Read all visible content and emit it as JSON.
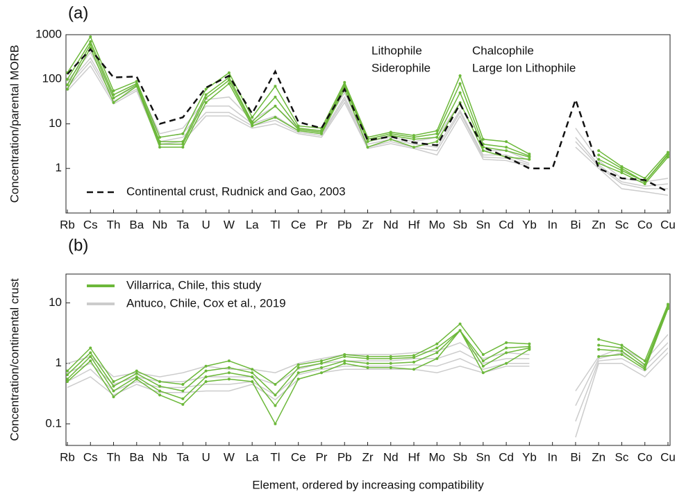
{
  "chart_data": [
    {
      "type": "line",
      "label": "(a)",
      "ylabel": "Concentration/parental MORB",
      "log": true,
      "categories": [
        "Rb",
        "Cs",
        "Th",
        "Ba",
        "Nb",
        "Ta",
        "U",
        "W",
        "La",
        "Tl",
        "Ce",
        "Pr",
        "Pb",
        "Zr",
        "Nd",
        "Hf",
        "Mo",
        "Sb",
        "Sn",
        "Cd",
        "Yb",
        "In",
        "Bi",
        "Zn",
        "Sc",
        "Co",
        "Cu"
      ],
      "category_group": [
        3,
        3,
        0,
        3,
        0,
        0,
        3,
        2,
        0,
        1,
        0,
        0,
        1,
        0,
        0,
        0,
        2,
        1,
        1,
        0,
        0,
        1,
        1,
        1,
        0,
        2,
        1
      ],
      "category_groups": [
        {
          "name": "Lithophile",
          "color": "#111111"
        },
        {
          "name": "Chalcophile",
          "color": "#e0312b"
        },
        {
          "name": "Siderophile",
          "color": "#e9a83c"
        },
        {
          "name": "Large Ion Lithophile",
          "color": "#3ab0d0"
        }
      ],
      "ylim": [
        0.1,
        1000
      ],
      "yticks": [
        1,
        10,
        100,
        1000
      ],
      "series": [
        {
          "color": "#cccccc",
          "lines": [
            [
              90,
              400,
              45,
              80,
              6,
              8,
              35,
              40,
              12,
              25,
              8,
              7,
              50,
              4,
              5,
              4,
              5,
              30,
              2.5,
              2.5,
              1.5,
              null,
              8,
              1.5,
              0.6,
              0.5,
              0.6
            ],
            [
              75,
              300,
              38,
              70,
              5,
              6,
              25,
              25,
              10,
              15,
              7,
              6,
              40,
              3.5,
              4.5,
              3.5,
              3,
              20,
              2,
              2,
              1.3,
              null,
              5,
              1.2,
              0.5,
              0.4,
              0.45
            ],
            [
              65,
              250,
              32,
              60,
              4,
              5,
              18,
              18,
              9,
              12,
              6.5,
              5.5,
              35,
              3,
              4,
              3,
              2.5,
              18,
              1.8,
              1.7,
              1.2,
              null,
              4,
              1.1,
              0.45,
              0.35,
              0.35
            ],
            [
              55,
              200,
              28,
              55,
              3.5,
              4,
              15,
              15,
              8,
              10,
              6,
              5,
              30,
              2.8,
              3.6,
              2.8,
              2,
              15,
              1.6,
              1.5,
              1.1,
              null,
              3,
              1,
              0.35,
              0.3,
              0.25
            ]
          ]
        },
        {
          "color": "#6cb83a",
          "markers": true,
          "lines": [
            [
              140,
              900,
              55,
              90,
              5,
              6,
              60,
              140,
              14,
              70,
              9,
              8,
              85,
              5,
              6.5,
              5.5,
              7,
              120,
              4.5,
              4,
              2.1,
              null,
              null,
              2.5,
              1.1,
              0.6,
              2.3
            ],
            [
              100,
              700,
              45,
              80,
              4,
              4,
              45,
              110,
              11,
              40,
              8,
              7,
              75,
              4.5,
              6,
              5,
              6,
              80,
              3.5,
              3,
              1.9,
              null,
              null,
              2,
              1,
              0.5,
              2.1
            ],
            [
              75,
              600,
              38,
              75,
              3.5,
              3.5,
              38,
              95,
              10,
              25,
              7.5,
              6.5,
              70,
              4,
              5.5,
              4.5,
              5,
              50,
              3,
              2.5,
              1.8,
              null,
              null,
              1.6,
              0.9,
              0.5,
              2
            ],
            [
              60,
              500,
              30,
              70,
              3,
              3,
              30,
              80,
              9,
              14,
              7,
              6,
              60,
              3,
              4.5,
              3,
              4,
              30,
              2.5,
              1.8,
              1.6,
              null,
              null,
              1.3,
              0.8,
              0.45,
              1.8
            ]
          ]
        },
        {
          "name": "Continental crust, Rudnick and Gao, 2003",
          "color": "#111111",
          "dashed": true,
          "lines": [
            [
              130,
              470,
              110,
              115,
              10,
              14,
              65,
              120,
              17,
              150,
              11,
              8,
              60,
              4.3,
              5.2,
              3.8,
              3.3,
              28,
              3,
              1.8,
              1,
              1,
              35,
              1,
              0.6,
              0.55,
              0.3
            ]
          ]
        }
      ]
    },
    {
      "type": "line",
      "label": "(b)",
      "ylabel": "Concentration/continental crust",
      "log": true,
      "xlabel": "Element, ordered by increasing compatibility",
      "categories": [
        "Rb",
        "Cs",
        "Th",
        "Ba",
        "Nb",
        "Ta",
        "U",
        "W",
        "La",
        "Tl",
        "Ce",
        "Pr",
        "Pb",
        "Zr",
        "Nd",
        "Hf",
        "Mo",
        "Sb",
        "Sn",
        "Cd",
        "Yb",
        "In",
        "Bi",
        "Zn",
        "Sc",
        "Co",
        "Cu"
      ],
      "category_group": [
        3,
        3,
        0,
        3,
        0,
        0,
        3,
        2,
        0,
        1,
        0,
        0,
        1,
        0,
        0,
        0,
        2,
        1,
        1,
        0,
        0,
        1,
        1,
        1,
        0,
        2,
        1
      ],
      "category_groups": [
        {
          "color": "#111111"
        },
        {
          "color": "#e0312b"
        },
        {
          "color": "#e9a83c"
        },
        {
          "color": "#3ab0d0"
        }
      ],
      "ylim": [
        0.044,
        30
      ],
      "yticks": [
        0.1,
        1,
        10
      ],
      "series": [
        {
          "name": "Villarrica, Chile, this study",
          "color": "#6cb83a",
          "markers": true,
          "lines": [
            [
              0.75,
              1.8,
              0.5,
              0.75,
              0.5,
              0.45,
              0.9,
              1.1,
              0.8,
              0.45,
              0.95,
              1.1,
              1.4,
              1.3,
              1.3,
              1.35,
              2.1,
              4.5,
              1.4,
              2.2,
              2.1,
              null,
              null,
              2.5,
              2,
              1.1,
              9.5
            ],
            [
              0.65,
              1.5,
              0.42,
              0.68,
              0.42,
              0.35,
              0.75,
              0.85,
              0.7,
              0.3,
              0.85,
              1,
              1.3,
              1.2,
              1.2,
              1.25,
              1.8,
              3.5,
              1.1,
              1.8,
              1.9,
              null,
              null,
              2,
              1.8,
              0.95,
              9
            ],
            [
              0.55,
              1.3,
              0.35,
              0.6,
              0.35,
              0.26,
              0.6,
              0.7,
              0.6,
              0.2,
              0.7,
              0.85,
              1.1,
              1,
              1,
              1.05,
              1.5,
              3.5,
              0.9,
              1.5,
              1.8,
              null,
              null,
              1.7,
              1.6,
              0.85,
              8.5
            ],
            [
              0.5,
              1.1,
              0.28,
              0.55,
              0.3,
              0.21,
              0.5,
              0.55,
              0.5,
              0.1,
              0.55,
              0.7,
              1,
              0.85,
              0.85,
              0.8,
              1.2,
              3.5,
              0.7,
              1,
              1.7,
              null,
              null,
              1.3,
              1.4,
              0.8,
              8
            ]
          ]
        },
        {
          "name": "Antuco, Chile, Cox et al., 2019",
          "color": "#cccccc",
          "behind": true,
          "lines": [
            [
              1,
              1.3,
              0.6,
              0.7,
              0.6,
              0.7,
              0.9,
              0.8,
              0.8,
              0.7,
              1,
              1.2,
              1.4,
              1.4,
              1.4,
              1.5,
              1.6,
              2.2,
              1.2,
              1.5,
              1.4,
              null,
              0.35,
              1.3,
              1.8,
              1.1,
              3
            ],
            [
              0.7,
              1,
              0.45,
              0.6,
              0.5,
              0.5,
              0.6,
              0.6,
              0.6,
              0.45,
              0.8,
              1,
              1.1,
              1.1,
              1.1,
              1.2,
              1.2,
              1.6,
              1,
              1.2,
              1.2,
              null,
              0.2,
              1.2,
              1.5,
              0.9,
              2.2
            ],
            [
              0.5,
              0.8,
              0.35,
              0.5,
              0.4,
              0.4,
              0.45,
              0.45,
              0.5,
              0.3,
              0.65,
              0.8,
              0.9,
              0.9,
              0.9,
              0.95,
              0.9,
              1.2,
              0.8,
              1,
              1,
              null,
              0.11,
              1.1,
              1.2,
              0.75,
              1.8
            ],
            [
              0.4,
              0.6,
              0.3,
              0.45,
              0.33,
              0.33,
              0.35,
              0.35,
              0.45,
              0.25,
              0.55,
              0.7,
              0.8,
              0.8,
              0.8,
              0.8,
              0.7,
              0.9,
              0.7,
              0.9,
              0.9,
              null,
              0.06,
              1,
              1,
              0.6,
              1.5
            ]
          ]
        }
      ]
    }
  ]
}
